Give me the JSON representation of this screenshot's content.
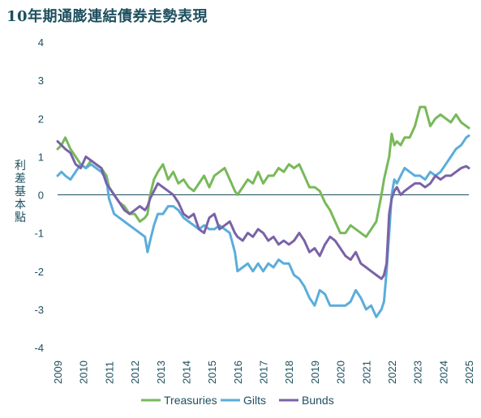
{
  "chart_data": {
    "type": "line",
    "title": "10年期通膨連結債券走勢表現",
    "ylabel": "利差基本點",
    "xlabel": "",
    "ylim": [
      -4,
      4
    ],
    "yticks": [
      "4",
      "3",
      "2",
      "1",
      "0",
      "-1",
      "-2",
      "-3",
      "-4"
    ],
    "xlim": [
      2009,
      2025
    ],
    "xticks": [
      "2009",
      "2010",
      "2011",
      "2012",
      "2013",
      "2014",
      "2015",
      "2016",
      "2017",
      "2018",
      "2019",
      "2020",
      "2021",
      "2022",
      "2023",
      "2024",
      "2025"
    ],
    "grid": false,
    "legend": "bottom",
    "colors": {
      "Treasuries": "#78b95a",
      "Gilts": "#5aaddb",
      "Bunds": "#7a62a8",
      "axis": "#1d4f5e"
    },
    "series": [
      {
        "name": "Treasuries",
        "x": [
          2009.0,
          2009.15,
          2009.3,
          2009.5,
          2009.7,
          2009.9,
          2010.1,
          2010.3,
          2010.5,
          2010.7,
          2010.9,
          2011.0,
          2011.2,
          2011.4,
          2011.6,
          2011.8,
          2012.0,
          2012.2,
          2012.4,
          2012.5,
          2012.6,
          2012.75,
          2012.9,
          2013.1,
          2013.3,
          2013.5,
          2013.7,
          2013.9,
          2014.1,
          2014.3,
          2014.5,
          2014.7,
          2014.9,
          2015.1,
          2015.3,
          2015.5,
          2015.7,
          2015.9,
          2016.0,
          2016.2,
          2016.4,
          2016.6,
          2016.8,
          2017.0,
          2017.2,
          2017.4,
          2017.6,
          2017.8,
          2018.0,
          2018.2,
          2018.4,
          2018.6,
          2018.8,
          2019.0,
          2019.2,
          2019.4,
          2019.6,
          2019.8,
          2020.0,
          2020.2,
          2020.4,
          2020.6,
          2020.8,
          2021.0,
          2021.2,
          2021.4,
          2021.6,
          2021.7,
          2021.8,
          2021.9,
          2022.0,
          2022.1,
          2022.2,
          2022.35,
          2022.5,
          2022.7,
          2022.9,
          2023.1,
          2023.3,
          2023.5,
          2023.7,
          2023.9,
          2024.1,
          2024.3,
          2024.5,
          2024.7,
          2024.9,
          2025.0
        ],
        "y": [
          1.2,
          1.3,
          1.5,
          1.2,
          1.0,
          0.8,
          0.7,
          0.9,
          0.8,
          0.7,
          0.5,
          0.2,
          0.0,
          -0.2,
          -0.3,
          -0.5,
          -0.5,
          -0.7,
          -0.6,
          -0.5,
          0.0,
          0.4,
          0.6,
          0.8,
          0.4,
          0.6,
          0.3,
          0.4,
          0.2,
          0.1,
          0.3,
          0.5,
          0.2,
          0.5,
          0.6,
          0.7,
          0.4,
          0.1,
          0.0,
          0.2,
          0.4,
          0.3,
          0.6,
          0.3,
          0.5,
          0.5,
          0.7,
          0.6,
          0.8,
          0.7,
          0.8,
          0.5,
          0.2,
          0.2,
          0.1,
          -0.2,
          -0.4,
          -0.7,
          -1.0,
          -1.0,
          -0.8,
          -0.9,
          -1.0,
          -1.1,
          -0.9,
          -0.7,
          0.0,
          0.4,
          0.7,
          1.0,
          1.6,
          1.3,
          1.4,
          1.3,
          1.5,
          1.5,
          1.8,
          2.3,
          2.3,
          1.8,
          2.0,
          2.1,
          2.0,
          1.9,
          2.1,
          1.9,
          1.8,
          1.75
        ]
      },
      {
        "name": "Gilts",
        "x": [
          2009.0,
          2009.15,
          2009.3,
          2009.5,
          2009.7,
          2009.9,
          2010.1,
          2010.3,
          2010.5,
          2010.7,
          2010.9,
          2011.0,
          2011.2,
          2011.4,
          2011.6,
          2011.8,
          2012.0,
          2012.2,
          2012.4,
          2012.5,
          2012.6,
          2012.75,
          2012.9,
          2013.1,
          2013.3,
          2013.5,
          2013.7,
          2013.9,
          2014.1,
          2014.3,
          2014.5,
          2014.7,
          2014.9,
          2015.1,
          2015.3,
          2015.5,
          2015.7,
          2015.9,
          2016.0,
          2016.2,
          2016.4,
          2016.6,
          2016.8,
          2017.0,
          2017.2,
          2017.4,
          2017.6,
          2017.8,
          2018.0,
          2018.2,
          2018.4,
          2018.6,
          2018.8,
          2019.0,
          2019.2,
          2019.4,
          2019.6,
          2019.8,
          2020.0,
          2020.2,
          2020.4,
          2020.6,
          2020.8,
          2021.0,
          2021.2,
          2021.4,
          2021.6,
          2021.7,
          2021.8,
          2021.9,
          2022.0,
          2022.1,
          2022.2,
          2022.35,
          2022.5,
          2022.7,
          2022.9,
          2023.1,
          2023.3,
          2023.5,
          2023.7,
          2023.9,
          2024.1,
          2024.3,
          2024.5,
          2024.7,
          2024.9,
          2025.0
        ],
        "y": [
          0.5,
          0.6,
          0.5,
          0.4,
          0.6,
          0.8,
          0.7,
          0.8,
          0.7,
          0.6,
          0.4,
          -0.1,
          -0.5,
          -0.6,
          -0.7,
          -0.8,
          -0.9,
          -1.0,
          -1.1,
          -1.5,
          -1.2,
          -0.8,
          -0.5,
          -0.5,
          -0.3,
          -0.3,
          -0.4,
          -0.6,
          -0.7,
          -0.8,
          -0.9,
          -0.8,
          -0.9,
          -0.9,
          -0.8,
          -0.9,
          -1.0,
          -1.5,
          -2.0,
          -1.9,
          -1.8,
          -2.0,
          -1.8,
          -2.0,
          -1.8,
          -1.9,
          -1.7,
          -1.8,
          -1.8,
          -2.1,
          -2.2,
          -2.4,
          -2.7,
          -2.9,
          -2.5,
          -2.6,
          -2.9,
          -2.9,
          -2.9,
          -2.9,
          -2.8,
          -2.5,
          -2.7,
          -3.0,
          -2.9,
          -3.2,
          -3.0,
          -2.8,
          -2.0,
          -1.0,
          0.0,
          0.4,
          0.3,
          0.5,
          0.7,
          0.6,
          0.5,
          0.5,
          0.4,
          0.6,
          0.5,
          0.6,
          0.8,
          1.0,
          1.2,
          1.3,
          1.5,
          1.55
        ]
      },
      {
        "name": "Bunds",
        "x": [
          2009.0,
          2009.15,
          2009.3,
          2009.5,
          2009.7,
          2009.9,
          2010.1,
          2010.3,
          2010.5,
          2010.7,
          2010.9,
          2011.0,
          2011.2,
          2011.4,
          2011.6,
          2011.8,
          2012.0,
          2012.2,
          2012.4,
          2012.5,
          2012.6,
          2012.75,
          2012.9,
          2013.1,
          2013.3,
          2013.5,
          2013.7,
          2013.9,
          2014.1,
          2014.3,
          2014.5,
          2014.7,
          2014.9,
          2015.1,
          2015.3,
          2015.5,
          2015.7,
          2015.9,
          2016.0,
          2016.2,
          2016.4,
          2016.6,
          2016.8,
          2017.0,
          2017.2,
          2017.4,
          2017.6,
          2017.8,
          2018.0,
          2018.2,
          2018.4,
          2018.6,
          2018.8,
          2019.0,
          2019.2,
          2019.4,
          2019.6,
          2019.8,
          2020.0,
          2020.2,
          2020.4,
          2020.6,
          2020.8,
          2021.0,
          2021.2,
          2021.4,
          2021.6,
          2021.7,
          2021.8,
          2021.9,
          2022.0,
          2022.1,
          2022.2,
          2022.35,
          2022.5,
          2022.7,
          2022.9,
          2023.1,
          2023.3,
          2023.5,
          2023.7,
          2023.9,
          2024.1,
          2024.3,
          2024.5,
          2024.7,
          2024.9,
          2025.0
        ],
        "y": [
          1.4,
          1.3,
          1.2,
          1.1,
          0.8,
          0.7,
          1.0,
          0.9,
          0.8,
          0.7,
          0.3,
          0.2,
          0.0,
          -0.2,
          -0.4,
          -0.5,
          -0.4,
          -0.3,
          -0.4,
          -0.3,
          -0.1,
          0.1,
          0.3,
          0.2,
          0.1,
          0.0,
          -0.2,
          -0.5,
          -0.6,
          -0.5,
          -0.9,
          -1.0,
          -0.6,
          -0.5,
          -0.9,
          -0.8,
          -0.7,
          -1.0,
          -1.1,
          -1.2,
          -1.0,
          -1.1,
          -0.9,
          -1.0,
          -1.2,
          -1.1,
          -1.3,
          -1.2,
          -1.3,
          -1.2,
          -1.0,
          -1.2,
          -1.5,
          -1.4,
          -1.6,
          -1.3,
          -1.1,
          -1.2,
          -1.4,
          -1.6,
          -1.7,
          -1.5,
          -1.8,
          -1.9,
          -2.0,
          -2.1,
          -2.2,
          -2.1,
          -1.8,
          -0.5,
          -0.1,
          0.1,
          0.2,
          0.0,
          0.1,
          0.2,
          0.3,
          0.3,
          0.2,
          0.3,
          0.5,
          0.4,
          0.5,
          0.5,
          0.6,
          0.7,
          0.75,
          0.7
        ]
      }
    ]
  }
}
